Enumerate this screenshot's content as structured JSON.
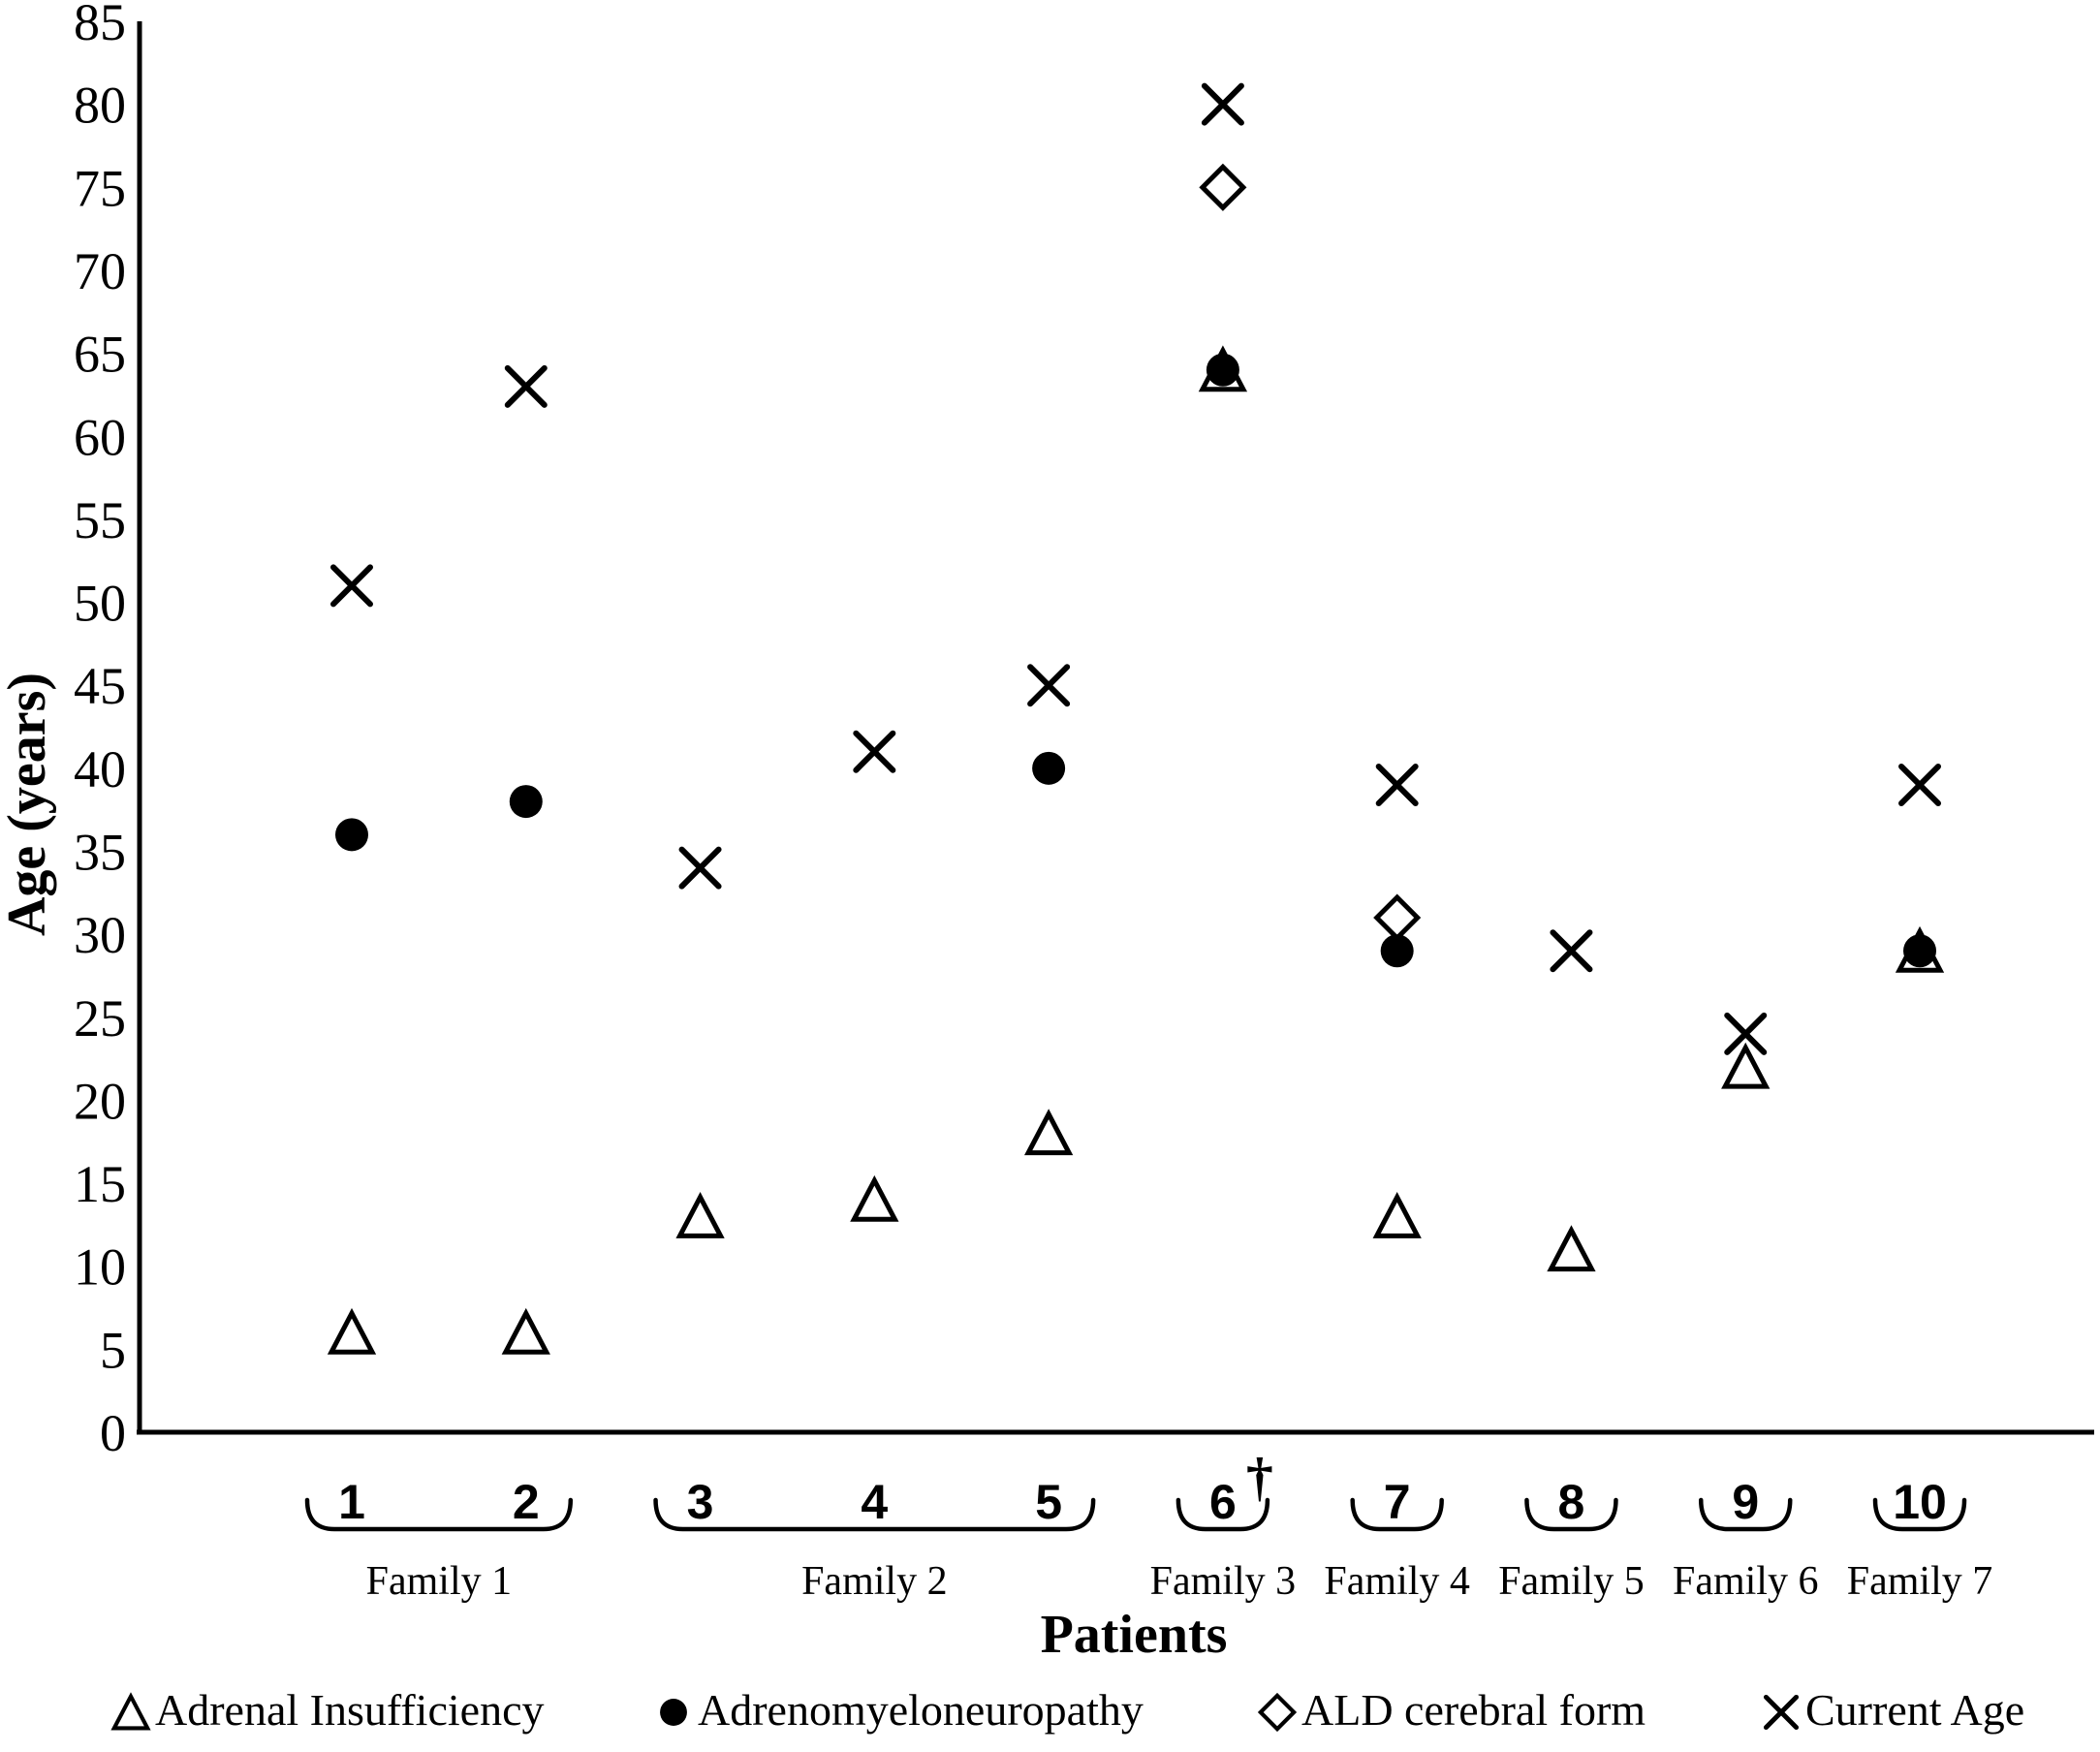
{
  "colors": {
    "foreground": "#000000",
    "background": "#ffffff"
  },
  "legend": {
    "items": [
      {
        "marker": "triangle-open",
        "label": "Adrenal Insufficiency"
      },
      {
        "marker": "circle-filled",
        "label": "Adrenomyeloneuropathy"
      },
      {
        "marker": "diamond-open",
        "label": "ALD cerebral form"
      },
      {
        "marker": "x-cross",
        "label": "Current Age"
      }
    ]
  },
  "chart_data": {
    "type": "scatter",
    "title": "",
    "xlabel": "Patients",
    "ylabel": "Age (years)",
    "ylim": [
      0,
      85
    ],
    "ytick_step": 5,
    "grid": false,
    "legend_position": "bottom",
    "categories": [
      "1",
      "2",
      "3",
      "4",
      "5",
      "6",
      "7",
      "8",
      "9",
      "10"
    ],
    "families": [
      {
        "label": "Family 1",
        "patients": [
          "1",
          "2"
        ]
      },
      {
        "label": "Family 2",
        "patients": [
          "3",
          "4",
          "5"
        ]
      },
      {
        "label": "Family 3",
        "patients": [
          "6"
        ]
      },
      {
        "label": "Family 4",
        "patients": [
          "7"
        ]
      },
      {
        "label": "Family 5",
        "patients": [
          "8"
        ]
      },
      {
        "label": "Family 6",
        "patients": [
          "9"
        ]
      },
      {
        "label": "Family 7",
        "patients": [
          "10"
        ]
      }
    ],
    "deceased_marker": {
      "patient": "6",
      "symbol": "†"
    },
    "series": [
      {
        "name": "Adrenal Insufficiency",
        "marker": "triangle-open",
        "values": [
          6,
          6,
          13,
          14,
          18,
          64,
          13,
          11,
          22,
          29
        ]
      },
      {
        "name": "Adrenomyeloneuropathy",
        "marker": "circle-filled",
        "values": [
          36,
          38,
          null,
          null,
          40,
          64,
          29,
          null,
          null,
          29
        ]
      },
      {
        "name": "ALD cerebral form",
        "marker": "diamond-open",
        "values": [
          null,
          null,
          null,
          null,
          null,
          75,
          31,
          null,
          null,
          null
        ]
      },
      {
        "name": "Current Age",
        "marker": "x-cross",
        "values": [
          51,
          63,
          34,
          41,
          45,
          80,
          39,
          29,
          24,
          39
        ]
      }
    ]
  }
}
